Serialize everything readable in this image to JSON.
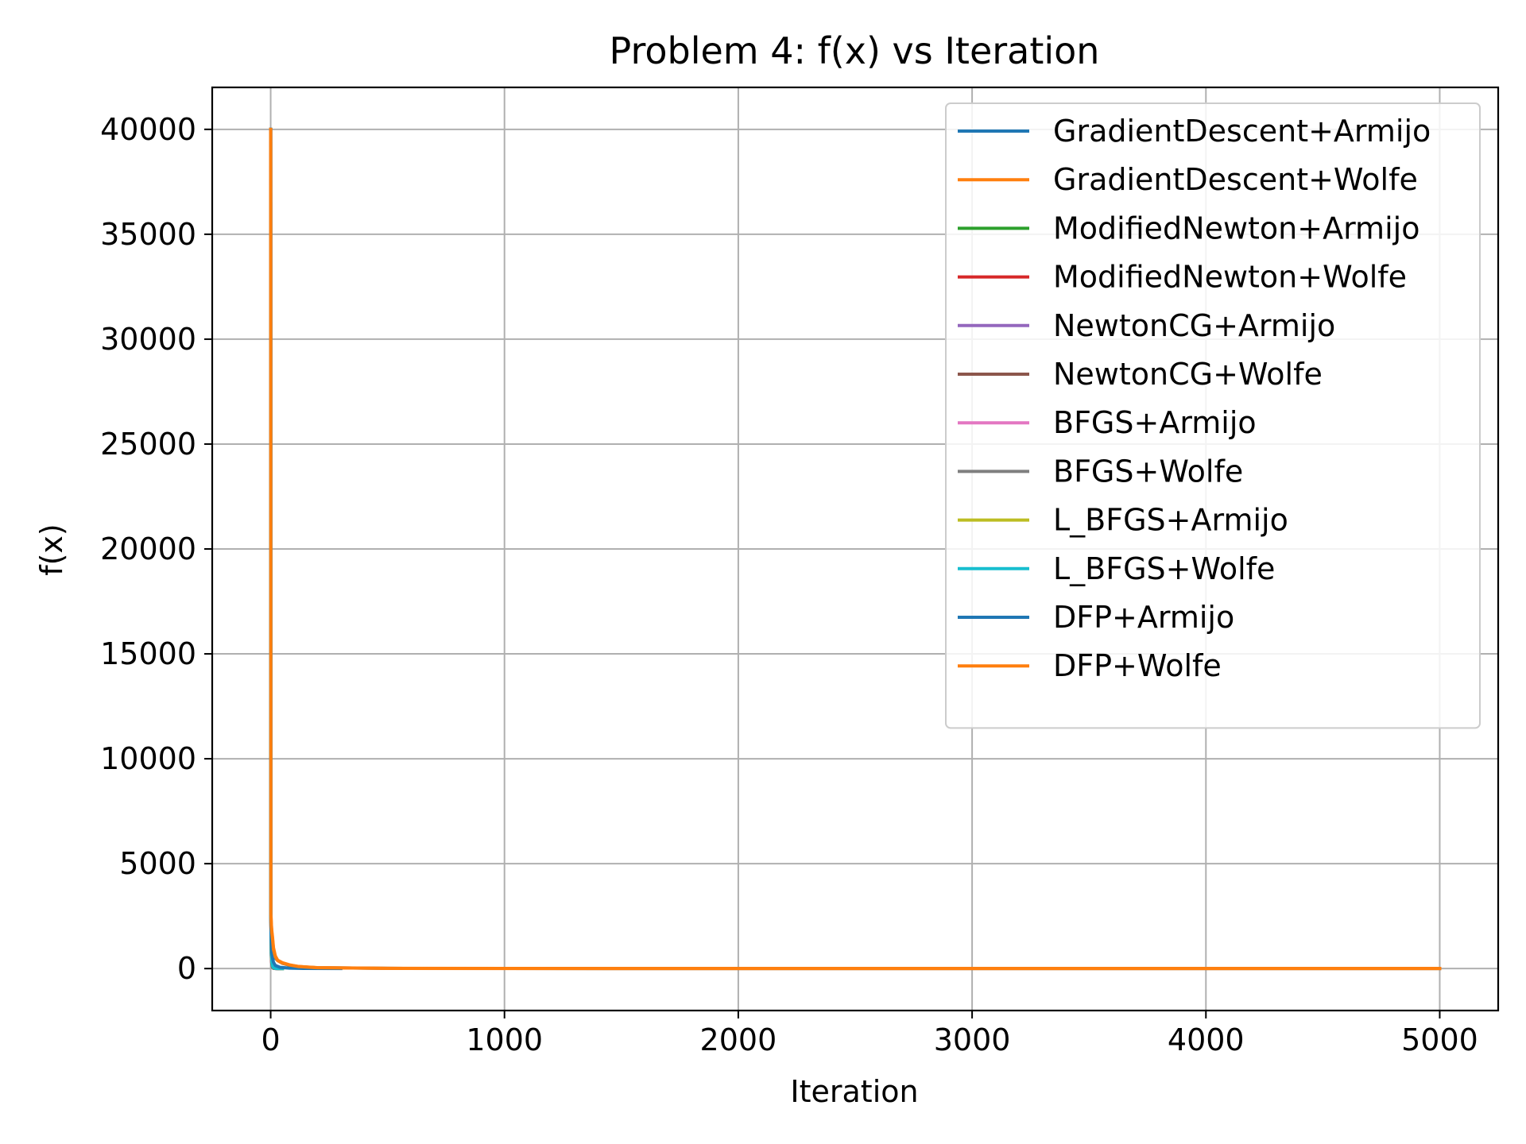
{
  "chart_data": {
    "type": "line",
    "title": "Problem 4: f(x) vs Iteration",
    "xlabel": "Iteration",
    "ylabel": "f(x)",
    "xlim": [
      -250,
      5250
    ],
    "ylim": [
      -2000,
      42000
    ],
    "xticks": [
      0,
      1000,
      2000,
      3000,
      4000,
      5000
    ],
    "yticks": [
      0,
      5000,
      10000,
      15000,
      20000,
      25000,
      30000,
      35000,
      40000
    ],
    "grid": true,
    "legend_position": "top-right",
    "series": [
      {
        "name": "GradientDescent+Armijo",
        "color": "#1f77b4",
        "x": [
          0,
          1,
          2,
          3,
          5,
          8,
          12,
          20,
          30,
          50,
          80,
          120,
          200,
          500,
          1000,
          2000,
          3000,
          4000,
          5000
        ],
        "y": [
          40000,
          2600,
          1800,
          1500,
          1200,
          900,
          700,
          500,
          380,
          250,
          160,
          90,
          40,
          10,
          5,
          3,
          2,
          1,
          1
        ]
      },
      {
        "name": "GradientDescent+Wolfe",
        "color": "#ff7f0e",
        "x": [
          0,
          1,
          2,
          3,
          5,
          8,
          12,
          20,
          30,
          50,
          80,
          120,
          200,
          500,
          1000,
          2000,
          3000,
          4000,
          5000
        ],
        "y": [
          40000,
          2600,
          2400,
          2100,
          1800,
          1500,
          1000,
          600,
          400,
          280,
          180,
          100,
          45,
          12,
          5,
          3,
          2,
          1,
          1
        ]
      },
      {
        "name": "ModifiedNewton+Armijo",
        "color": "#2ca02c",
        "x": [
          0,
          1,
          2,
          3,
          5,
          8,
          12,
          20,
          30,
          40
        ],
        "y": [
          40000,
          2500,
          1200,
          600,
          250,
          80,
          20,
          5,
          1,
          0
        ]
      },
      {
        "name": "ModifiedNewton+Wolfe",
        "color": "#d62728",
        "x": [
          0,
          1,
          2,
          3,
          5,
          8,
          12,
          20,
          30,
          40
        ],
        "y": [
          40000,
          2500,
          1200,
          600,
          250,
          80,
          20,
          5,
          1,
          0
        ]
      },
      {
        "name": "NewtonCG+Armijo",
        "color": "#9467bd",
        "x": [
          0,
          1,
          2,
          3,
          5,
          8,
          12,
          20,
          30
        ],
        "y": [
          40000,
          2400,
          1100,
          500,
          200,
          60,
          15,
          3,
          0
        ]
      },
      {
        "name": "NewtonCG+Wolfe",
        "color": "#8c564b",
        "x": [
          0,
          1,
          2,
          3,
          5,
          8,
          12,
          20,
          30
        ],
        "y": [
          40000,
          2400,
          1100,
          500,
          200,
          60,
          15,
          3,
          0
        ]
      },
      {
        "name": "BFGS+Armijo",
        "color": "#e377c2",
        "x": [
          0,
          1,
          2,
          3,
          5,
          8,
          12,
          20,
          30,
          50
        ],
        "y": [
          40000,
          2500,
          1500,
          800,
          400,
          150,
          50,
          10,
          2,
          0
        ]
      },
      {
        "name": "BFGS+Wolfe",
        "color": "#7f7f7f",
        "x": [
          0,
          1,
          2,
          3,
          5,
          8,
          12,
          20,
          30,
          50
        ],
        "y": [
          40000,
          2500,
          1500,
          800,
          400,
          150,
          50,
          10,
          2,
          0
        ]
      },
      {
        "name": "L_BFGS+Armijo",
        "color": "#bcbd22",
        "x": [
          0,
          1,
          2,
          3,
          5,
          8,
          12,
          20,
          30,
          50
        ],
        "y": [
          40000,
          2500,
          1400,
          750,
          350,
          120,
          40,
          8,
          2,
          0
        ]
      },
      {
        "name": "L_BFGS+Wolfe",
        "color": "#17becf",
        "x": [
          0,
          1,
          2,
          3,
          5,
          8,
          12,
          20,
          30,
          50
        ],
        "y": [
          40000,
          2500,
          1400,
          750,
          350,
          120,
          40,
          8,
          2,
          0
        ]
      },
      {
        "name": "DFP+Armijo",
        "color": "#1f77b4",
        "x": [
          0,
          1,
          2,
          3,
          5,
          8,
          12,
          20,
          40,
          80,
          150,
          300
        ],
        "y": [
          40000,
          2600,
          1700,
          1200,
          800,
          500,
          300,
          150,
          60,
          20,
          5,
          0
        ]
      },
      {
        "name": "DFP+Wolfe",
        "color": "#ff7f0e",
        "x": [
          0,
          1,
          2,
          3,
          5,
          8,
          12,
          20,
          30,
          50,
          80,
          120,
          200,
          500,
          1000,
          2000,
          3000,
          4000,
          5000
        ],
        "y": [
          40000,
          2600,
          2300,
          2000,
          1700,
          1400,
          900,
          550,
          380,
          260,
          170,
          95,
          40,
          10,
          4,
          2,
          1,
          1,
          1
        ]
      }
    ]
  }
}
